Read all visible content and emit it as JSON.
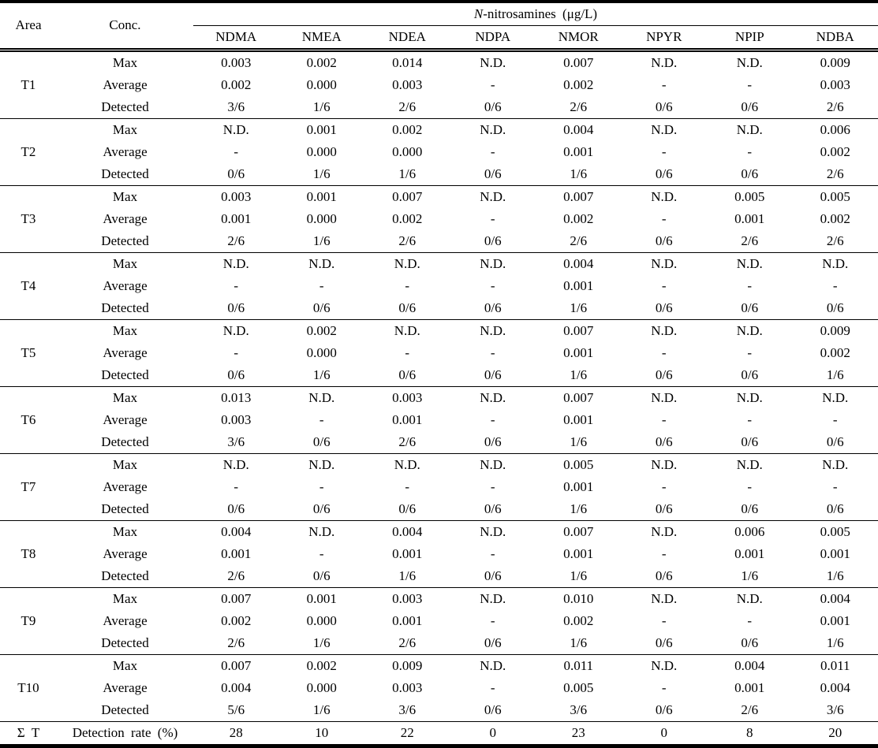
{
  "table": {
    "header": {
      "area_label": "Area",
      "conc_label": "Conc.",
      "span_italic": "N",
      "span_rest": "-nitrosamines (μg/L)",
      "columns": [
        "NDMA",
        "NMEA",
        "NDEA",
        "NDPA",
        "NMOR",
        "NPYR",
        "NPIP",
        "NDBA"
      ]
    },
    "row_labels": [
      "Max",
      "Average",
      "Detected"
    ],
    "groups": [
      {
        "area": "T1",
        "rows": [
          {
            "label": "Max",
            "values": [
              "0.003",
              "0.002",
              "0.014",
              "N.D.",
              "0.007",
              "N.D.",
              "N.D.",
              "0.009"
            ]
          },
          {
            "label": "Average",
            "values": [
              "0.002",
              "0.000",
              "0.003",
              "-",
              "0.002",
              "-",
              "-",
              "0.003"
            ]
          },
          {
            "label": "Detected",
            "values": [
              "3/6",
              "1/6",
              "2/6",
              "0/6",
              "2/6",
              "0/6",
              "0/6",
              "2/6"
            ]
          }
        ]
      },
      {
        "area": "T2",
        "rows": [
          {
            "label": "Max",
            "values": [
              "N.D.",
              "0.001",
              "0.002",
              "N.D.",
              "0.004",
              "N.D.",
              "N.D.",
              "0.006"
            ]
          },
          {
            "label": "Average",
            "values": [
              "-",
              "0.000",
              "0.000",
              "-",
              "0.001",
              "-",
              "-",
              "0.002"
            ]
          },
          {
            "label": "Detected",
            "values": [
              "0/6",
              "1/6",
              "1/6",
              "0/6",
              "1/6",
              "0/6",
              "0/6",
              "2/6"
            ]
          }
        ]
      },
      {
        "area": "T3",
        "rows": [
          {
            "label": "Max",
            "values": [
              "0.003",
              "0.001",
              "0.007",
              "N.D.",
              "0.007",
              "N.D.",
              "0.005",
              "0.005"
            ]
          },
          {
            "label": "Average",
            "values": [
              "0.001",
              "0.000",
              "0.002",
              "-",
              "0.002",
              "-",
              "0.001",
              "0.002"
            ]
          },
          {
            "label": "Detected",
            "values": [
              "2/6",
              "1/6",
              "2/6",
              "0/6",
              "2/6",
              "0/6",
              "2/6",
              "2/6"
            ]
          }
        ]
      },
      {
        "area": "T4",
        "rows": [
          {
            "label": "Max",
            "values": [
              "N.D.",
              "N.D.",
              "N.D.",
              "N.D.",
              "0.004",
              "N.D.",
              "N.D.",
              "N.D."
            ]
          },
          {
            "label": "Average",
            "values": [
              "-",
              "-",
              "-",
              "-",
              "0.001",
              "-",
              "-",
              "-"
            ]
          },
          {
            "label": "Detected",
            "values": [
              "0/6",
              "0/6",
              "0/6",
              "0/6",
              "1/6",
              "0/6",
              "0/6",
              "0/6"
            ]
          }
        ]
      },
      {
        "area": "T5",
        "rows": [
          {
            "label": "Max",
            "values": [
              "N.D.",
              "0.002",
              "N.D.",
              "N.D.",
              "0.007",
              "N.D.",
              "N.D.",
              "0.009"
            ]
          },
          {
            "label": "Average",
            "values": [
              "-",
              "0.000",
              "-",
              "-",
              "0.001",
              "-",
              "-",
              "0.002"
            ]
          },
          {
            "label": "Detected",
            "values": [
              "0/6",
              "1/6",
              "0/6",
              "0/6",
              "1/6",
              "0/6",
              "0/6",
              "1/6"
            ]
          }
        ]
      },
      {
        "area": "T6",
        "rows": [
          {
            "label": "Max",
            "values": [
              "0.013",
              "N.D.",
              "0.003",
              "N.D.",
              "0.007",
              "N.D.",
              "N.D.",
              "N.D."
            ]
          },
          {
            "label": "Average",
            "values": [
              "0.003",
              "-",
              "0.001",
              "-",
              "0.001",
              "-",
              "-",
              "-"
            ]
          },
          {
            "label": "Detected",
            "values": [
              "3/6",
              "0/6",
              "2/6",
              "0/6",
              "1/6",
              "0/6",
              "0/6",
              "0/6"
            ]
          }
        ]
      },
      {
        "area": "T7",
        "rows": [
          {
            "label": "Max",
            "values": [
              "N.D.",
              "N.D.",
              "N.D.",
              "N.D.",
              "0.005",
              "N.D.",
              "N.D.",
              "N.D."
            ]
          },
          {
            "label": "Average",
            "values": [
              "-",
              "-",
              "-",
              "-",
              "0.001",
              "-",
              "-",
              "-"
            ]
          },
          {
            "label": "Detected",
            "values": [
              "0/6",
              "0/6",
              "0/6",
              "0/6",
              "1/6",
              "0/6",
              "0/6",
              "0/6"
            ]
          }
        ]
      },
      {
        "area": "T8",
        "rows": [
          {
            "label": "Max",
            "values": [
              "0.004",
              "N.D.",
              "0.004",
              "N.D.",
              "0.007",
              "N.D.",
              "0.006",
              "0.005"
            ]
          },
          {
            "label": "Average",
            "values": [
              "0.001",
              "-",
              "0.001",
              "-",
              "0.001",
              "-",
              "0.001",
              "0.001"
            ]
          },
          {
            "label": "Detected",
            "values": [
              "2/6",
              "0/6",
              "1/6",
              "0/6",
              "1/6",
              "0/6",
              "1/6",
              "1/6"
            ]
          }
        ]
      },
      {
        "area": "T9",
        "rows": [
          {
            "label": "Max",
            "values": [
              "0.007",
              "0.001",
              "0.003",
              "N.D.",
              "0.010",
              "N.D.",
              "N.D.",
              "0.004"
            ]
          },
          {
            "label": "Average",
            "values": [
              "0.002",
              "0.000",
              "0.001",
              "-",
              "0.002",
              "-",
              "-",
              "0.001"
            ]
          },
          {
            "label": "Detected",
            "values": [
              "2/6",
              "1/6",
              "2/6",
              "0/6",
              "1/6",
              "0/6",
              "0/6",
              "1/6"
            ]
          }
        ]
      },
      {
        "area": "T10",
        "rows": [
          {
            "label": "Max",
            "values": [
              "0.007",
              "0.002",
              "0.009",
              "N.D.",
              "0.011",
              "N.D.",
              "0.004",
              "0.011"
            ]
          },
          {
            "label": "Average",
            "values": [
              "0.004",
              "0.000",
              "0.003",
              "-",
              "0.005",
              "-",
              "0.001",
              "0.004"
            ]
          },
          {
            "label": "Detected",
            "values": [
              "5/6",
              "1/6",
              "3/6",
              "0/6",
              "3/6",
              "0/6",
              "2/6",
              "3/6"
            ]
          }
        ]
      }
    ],
    "footer": {
      "area": "Σ T",
      "label": "Detection rate (%)",
      "values": [
        "28",
        "10",
        "22",
        "0",
        "23",
        "0",
        "8",
        "20"
      ]
    }
  }
}
